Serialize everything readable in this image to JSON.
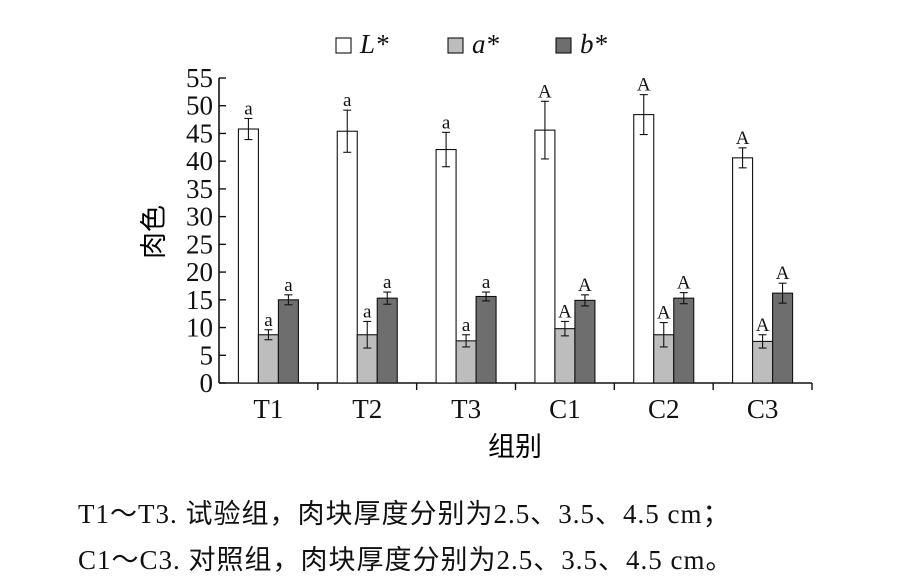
{
  "chart_data": {
    "type": "bar",
    "xlabel": "组别",
    "ylabel": "肉色",
    "ylim": [
      0,
      55
    ],
    "yticks": [
      0,
      5,
      10,
      15,
      20,
      25,
      30,
      35,
      40,
      45,
      50,
      55
    ],
    "categories": [
      "T1",
      "T2",
      "T3",
      "C1",
      "C2",
      "C3"
    ],
    "series": [
      {
        "name": "L*",
        "color": "#ffffff",
        "values": [
          45.8,
          45.4,
          42.1,
          45.6,
          48.4,
          40.6
        ],
        "errors": [
          1.9,
          3.8,
          3.1,
          5.2,
          3.6,
          1.8
        ],
        "labels": [
          "a",
          "a",
          "a",
          "A",
          "A",
          "A"
        ]
      },
      {
        "name": "a*",
        "color": "#bdbdbd",
        "values": [
          8.7,
          8.7,
          7.6,
          9.8,
          8.7,
          7.5
        ],
        "errors": [
          0.9,
          2.4,
          1.1,
          1.3,
          2.2,
          1.2
        ],
        "labels": [
          "a",
          "a",
          "a",
          "A",
          "A",
          "A"
        ]
      },
      {
        "name": "b*",
        "color": "#6e6e6e",
        "values": [
          15.0,
          15.3,
          15.6,
          14.9,
          15.3,
          16.2
        ],
        "errors": [
          0.9,
          1.1,
          0.8,
          1.0,
          1.0,
          1.8
        ],
        "labels": [
          "a",
          "a",
          "a",
          "A",
          "A",
          "A"
        ]
      }
    ],
    "legend": {
      "placement": "top-center"
    }
  },
  "caption": {
    "line1": "T1～T3. 试验组，肉块厚度分别为2.5、3.5、4.5 cm；",
    "line2": "C1～C3. 对照组，肉块厚度分别为2.5、3.5、4.5 cm。"
  }
}
